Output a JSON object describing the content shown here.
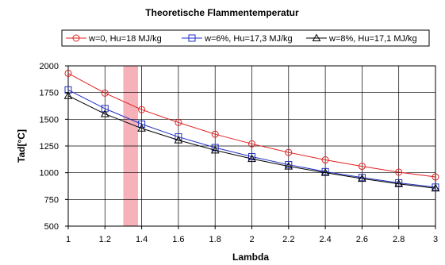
{
  "chart_data": {
    "type": "line",
    "title": "Theoretische Flammentemperatur",
    "xlabel": "Lambda",
    "ylabel": "Tad[°C]",
    "xlim": [
      1,
      3
    ],
    "ylim": [
      500,
      2000
    ],
    "xticks": [
      "1",
      "1.2",
      "1.4",
      "1.6",
      "1.8",
      "2",
      "2.2",
      "2.4",
      "2.6",
      "2.8",
      "3"
    ],
    "yticks": [
      "500",
      "750",
      "1000",
      "1250",
      "1500",
      "1750",
      "2000"
    ],
    "grid": true,
    "legend_position": "top",
    "highlight_band": {
      "x_from": 1.3,
      "x_to": 1.38,
      "color": "#f4a3ad"
    },
    "x": [
      1.0,
      1.2,
      1.4,
      1.6,
      1.8,
      2.0,
      2.2,
      2.4,
      2.6,
      2.8,
      3.0
    ],
    "series": [
      {
        "name": "w=0, Hu=18 MJ/kg",
        "color": "#e02020",
        "marker": "circle",
        "values": [
          1930,
          1745,
          1590,
          1470,
          1360,
          1270,
          1190,
          1120,
          1060,
          1005,
          960
        ]
      },
      {
        "name": "w=6%, Hu=17,3 MJ/kg",
        "color": "#2030c0",
        "marker": "square",
        "values": [
          1775,
          1600,
          1455,
          1335,
          1235,
          1150,
          1075,
          1010,
          955,
          905,
          865
        ]
      },
      {
        "name": "w=8%, Hu=17,1 MJ/kg",
        "color": "#000000",
        "marker": "triangle",
        "values": [
          1720,
          1550,
          1415,
          1305,
          1210,
          1130,
          1060,
          1000,
          945,
          895,
          855
        ]
      }
    ]
  }
}
